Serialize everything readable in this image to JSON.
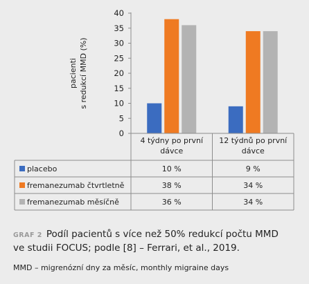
{
  "chart_data": {
    "type": "bar",
    "ylabel_line1": "pacienti",
    "ylabel_line2": "s redukcí MMD (%)",
    "ylim": [
      0,
      40
    ],
    "yticks": [
      0,
      5,
      10,
      15,
      20,
      25,
      30,
      35,
      40
    ],
    "grid": false,
    "legend": "table-below",
    "categories": [
      [
        "4 týdny po první",
        "dávce"
      ],
      [
        "12 týdnů po první",
        "dávce"
      ]
    ],
    "series": [
      {
        "name": "placebo",
        "color": "#3b6cc0",
        "values": [
          10,
          9
        ],
        "labels": [
          "10 %",
          "9 %"
        ]
      },
      {
        "name": "fremanezumab čtvrtletně",
        "color": "#ef7a22",
        "values": [
          38,
          34
        ],
        "labels": [
          "38 %",
          "34 %"
        ]
      },
      {
        "name": "fremanezumab měsíčně",
        "color": "#b3b3b3",
        "values": [
          36,
          34
        ],
        "labels": [
          "36 %",
          "34 %"
        ]
      }
    ]
  },
  "caption": {
    "label": "GRAF 2",
    "line1": "Podíl pacientů s více než 50% redukcí počtu MMD",
    "line2": "ve studii FOCUS; podle [8] – Ferrari, et al., 2019."
  },
  "note": "MMD – migrenózní dny za měsíc, monthly migraine days"
}
